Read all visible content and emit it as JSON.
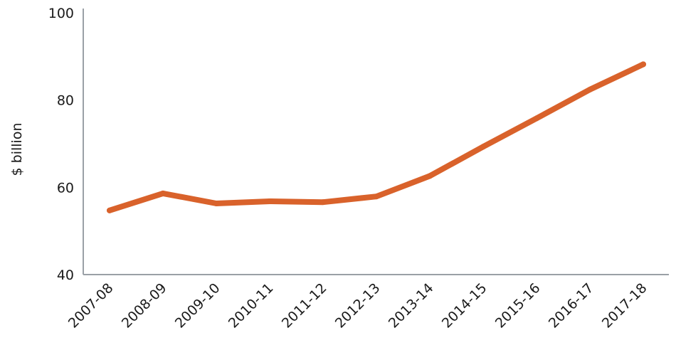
{
  "chart_data": {
    "type": "line",
    "title": "",
    "xlabel": "",
    "ylabel": "$ billion",
    "categories": [
      "2007-08",
      "2008-09",
      "2009-10",
      "2010-11",
      "2011-12",
      "2012-13",
      "2013-14",
      "2014-15",
      "2015-16",
      "2016-17",
      "2017-18"
    ],
    "series": [
      {
        "values": [
          54.7,
          58.6,
          56.3,
          56.8,
          56.6,
          57.9,
          62.6,
          69.3,
          75.8,
          82.4,
          88.2
        ],
        "color": "#d9622b"
      }
    ],
    "ylim": [
      40,
      100
    ],
    "yticks": [
      40,
      60,
      80,
      100
    ],
    "grid": false,
    "legend": "none",
    "axis_color": "#9aa0a6"
  }
}
